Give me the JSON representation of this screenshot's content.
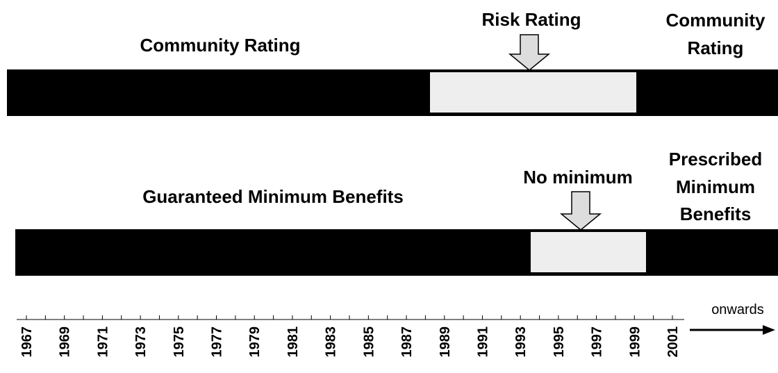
{
  "rows": [
    {
      "label": "Community Rating",
      "highlight_label": "Risk Rating",
      "end_label": [
        "Community",
        "Rating"
      ]
    },
    {
      "label": "Guaranteed Minimum Benefits",
      "highlight_label": "No minimum",
      "end_label": [
        "Prescribed",
        "Minimum",
        "Benefits"
      ]
    }
  ],
  "timeline": {
    "years": [
      "1967",
      "1969",
      "1971",
      "1973",
      "1975",
      "1977",
      "1979",
      "1981",
      "1983",
      "1985",
      "1987",
      "1989",
      "1991",
      "1993",
      "1995",
      "1997",
      "1999",
      "2001"
    ],
    "end_label": "onwards"
  }
}
